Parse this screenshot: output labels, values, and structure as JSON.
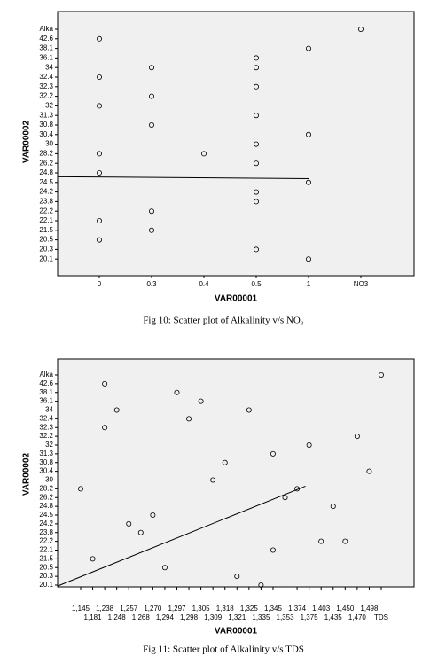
{
  "chart_data": [
    {
      "type": "scatter",
      "x_label": "VAR00001",
      "y_label": "VAR00002",
      "caption": "Fig 10: Scatter plot of Alkalinity v/s NO₃",
      "x_categories": [
        "0",
        "0.3",
        "0.4",
        "0.5",
        "1",
        "NO3"
      ],
      "y_categories": [
        "Alka",
        "42.6",
        "38.1",
        "36.1",
        "34",
        "32.4",
        "32.3",
        "32.2",
        "32",
        "31.3",
        "30.8",
        "30.4",
        "30",
        "28.2",
        "26.2",
        "24.8",
        "24.5",
        "24.2",
        "23.8",
        "22.2",
        "22.1",
        "21.5",
        "20.5",
        "20.3",
        "20.1"
      ],
      "series": [
        {
          "x": [
            "NO3",
            "0",
            "1",
            "0.5",
            "0.3",
            "0.5",
            "0",
            "0.5",
            "0.3",
            "0",
            "0.5",
            "0.3",
            "1",
            "0.5",
            "0",
            "0.4",
            "0.5",
            "0",
            "1",
            "0.5",
            "0.5",
            "0.3",
            "0",
            "0.3",
            "0",
            "0.5",
            "1"
          ],
          "y": [
            "Alka",
            "42.6",
            "38.1",
            "36.1",
            "34",
            "34",
            "32.4",
            "32.3",
            "32.2",
            "32",
            "31.3",
            "30.8",
            "30.4",
            "30",
            "28.2",
            "28.2",
            "26.2",
            "24.8",
            "24.5",
            "24.2",
            "23.8",
            "22.2",
            "22.1",
            "21.5",
            "20.5",
            "20.3",
            "20.1"
          ]
        }
      ],
      "fit_line": {
        "x": [
          -0.8,
          4.0
        ],
        "y": [
          15.4,
          15.6
        ]
      }
    },
    {
      "type": "scatter",
      "x_label": "VAR00001",
      "y_label": "VAR00002",
      "caption": "Fig 11: Scatter plot of Alkalinity v/s TDS",
      "x_categories": [
        "1,145",
        "1,181",
        "1,238",
        "1,248",
        "1,257",
        "1,268",
        "1,270",
        "1,294",
        "1,297",
        "1,298",
        "1,305",
        "1,309",
        "1,318",
        "1,321",
        "1,325",
        "1,335",
        "1,345",
        "1,353",
        "1,374",
        "1,375",
        "1,403",
        "1,435",
        "1,450",
        "1,470",
        "1,498",
        "TDS"
      ],
      "y_categories": [
        "Alka",
        "42.6",
        "38.1",
        "36.1",
        "34",
        "32.4",
        "32.3",
        "32.2",
        "32",
        "31.3",
        "30.8",
        "30.4",
        "30",
        "28.2",
        "26.2",
        "24.8",
        "24.5",
        "24.2",
        "23.8",
        "22.2",
        "22.1",
        "21.5",
        "20.5",
        "20.3",
        "20.1"
      ],
      "series": [
        {
          "x": [
            "TDS",
            "1,238",
            "1,297",
            "1,305",
            "1,248",
            "1,325",
            "1,298",
            "1,238",
            "1,470",
            "1,375",
            "1,345",
            "1,318",
            "1,498",
            "1,309",
            "1,145",
            "1,374",
            "1,353",
            "1,435",
            "1,270",
            "1,257",
            "1,268",
            "1,403",
            "1,450",
            "1,345",
            "1,181",
            "1,294",
            "1,321",
            "1,335"
          ],
          "y": [
            "Alka",
            "42.6",
            "38.1",
            "36.1",
            "34",
            "34",
            "32.4",
            "32.3",
            "32.2",
            "32",
            "31.3",
            "30.8",
            "30.4",
            "30",
            "28.2",
            "28.2",
            "26.2",
            "24.8",
            "24.5",
            "24.2",
            "23.8",
            "22.2",
            "22.2",
            "22.1",
            "21.5",
            "20.5",
            "20.3",
            "20.1"
          ]
        }
      ],
      "fit_line": {
        "x": [
          -1.9,
          18.7
        ],
        "y": [
          24.1,
          12.7
        ]
      }
    }
  ]
}
